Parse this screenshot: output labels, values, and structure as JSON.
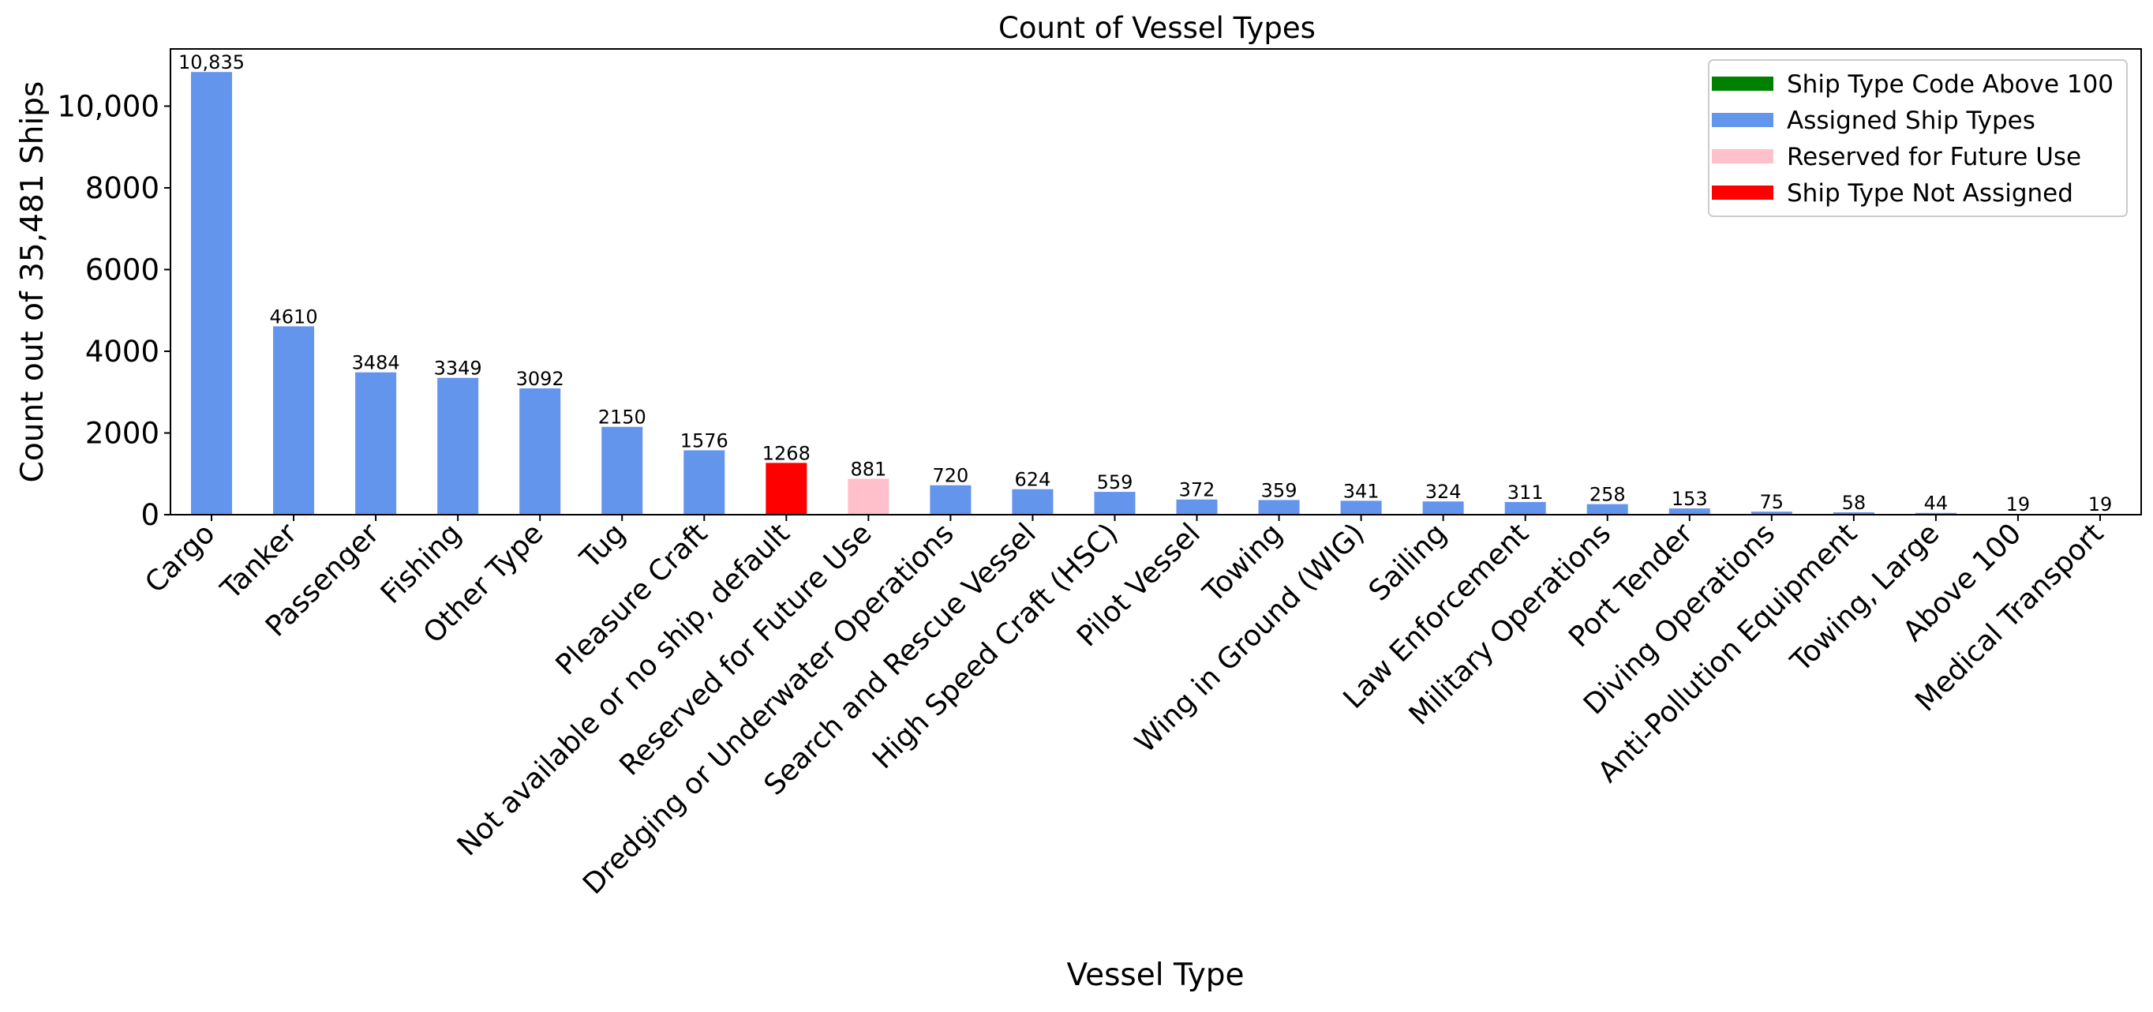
{
  "chart_data": {
    "type": "bar",
    "title": "Count of Vessel Types",
    "xlabel": "Vessel Type",
    "ylabel": "Count out of 35,481 Ships",
    "ylim": [
      0,
      11400
    ],
    "yticks": [
      0,
      2000,
      4000,
      6000,
      8000,
      10000
    ],
    "ytick_labels": [
      "0",
      "2000",
      "4000",
      "6000",
      "8000",
      "10,000"
    ],
    "grid": false,
    "legend_position": "top-right",
    "categories": [
      "Cargo",
      "Tanker",
      "Passenger",
      "Fishing",
      "Other Type",
      "Tug",
      "Pleasure Craft",
      "Not available or no ship, default",
      "Reserved for Future Use",
      "Dredging or Underwater Operations",
      "Search and Rescue Vessel",
      "High Speed Craft (HSC)",
      "Pilot Vessel",
      "Towing",
      "Wing in Ground (WIG)",
      "Sailing",
      "Law Enforcement",
      "Military Operations",
      "Port Tender",
      "Diving Operations",
      "Anti-Pollution Equipment",
      "Towing, Large",
      "Above 100",
      "Medical Transport"
    ],
    "values": [
      10835,
      4610,
      3484,
      3349,
      3092,
      2150,
      1576,
      1268,
      881,
      720,
      624,
      559,
      372,
      359,
      341,
      324,
      311,
      258,
      153,
      75,
      58,
      44,
      19,
      19
    ],
    "value_labels": [
      "10,835",
      "4610",
      "3484",
      "3349",
      "3092",
      "2150",
      "1576",
      "1268",
      "881",
      "720",
      "624",
      "559",
      "372",
      "359",
      "341",
      "324",
      "311",
      "258",
      "153",
      "75",
      "58",
      "44",
      "19",
      "19"
    ],
    "bar_groups": [
      "assigned",
      "assigned",
      "assigned",
      "assigned",
      "assigned",
      "assigned",
      "assigned",
      "not_assigned",
      "reserved",
      "assigned",
      "assigned",
      "assigned",
      "assigned",
      "assigned",
      "assigned",
      "assigned",
      "assigned",
      "assigned",
      "assigned",
      "assigned",
      "assigned",
      "assigned",
      "above100",
      "assigned"
    ],
    "legend": [
      {
        "key": "above100",
        "label": "Ship Type Code Above 100",
        "color": "#008000"
      },
      {
        "key": "assigned",
        "label": "Assigned Ship Types",
        "color": "#6495ED"
      },
      {
        "key": "reserved",
        "label": "Reserved for Future Use",
        "color": "#FFC0CB"
      },
      {
        "key": "not_assigned",
        "label": "Ship Type Not Assigned",
        "color": "#FF0000"
      }
    ]
  }
}
